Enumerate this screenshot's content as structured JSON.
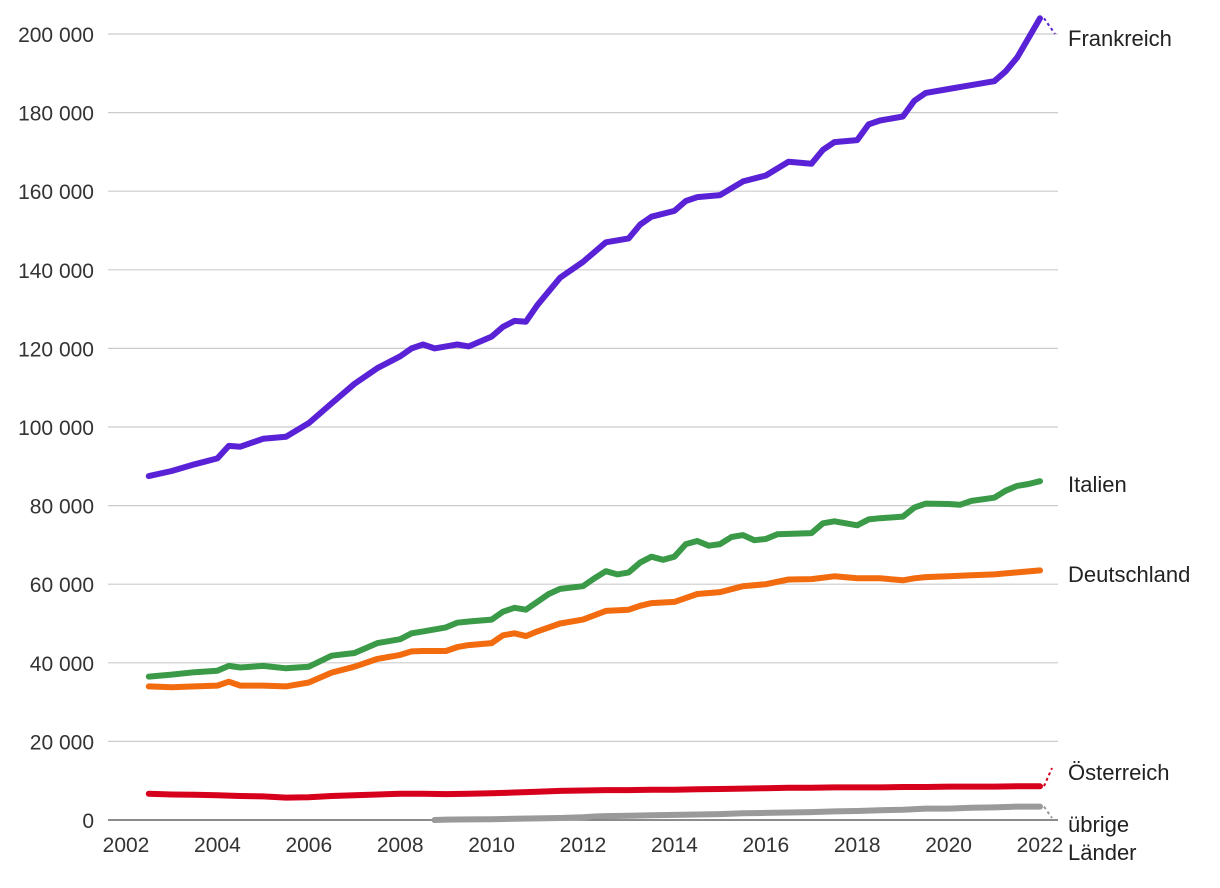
{
  "chart_data": {
    "type": "line",
    "title": "",
    "xlabel": "",
    "ylabel": "",
    "xlim": [
      2002,
      2022
    ],
    "ylim": [
      0,
      200000
    ],
    "grid": true,
    "legend": "direct labels at right end of lines",
    "x_ticks": [
      "2002",
      "2004",
      "2006",
      "2008",
      "2010",
      "2012",
      "2014",
      "2016",
      "2018",
      "2020",
      "2022"
    ],
    "y_ticks": [
      "0",
      "20 000",
      "40 000",
      "60 000",
      "80 000",
      "100 000",
      "120 000",
      "140 000",
      "160 000",
      "180 000",
      "200 000"
    ],
    "series": [
      {
        "name": "Frankreich",
        "color": "#5a22d6",
        "points": [
          [
            2002.5,
            87500
          ],
          [
            2003.0,
            88800
          ],
          [
            2003.5,
            90500
          ],
          [
            2004.0,
            92000
          ],
          [
            2004.25,
            95200
          ],
          [
            2004.5,
            95000
          ],
          [
            2005.0,
            97000
          ],
          [
            2005.5,
            97500
          ],
          [
            2006.0,
            101000
          ],
          [
            2006.5,
            106000
          ],
          [
            2007.0,
            111000
          ],
          [
            2007.5,
            115000
          ],
          [
            2008.0,
            118000
          ],
          [
            2008.25,
            120000
          ],
          [
            2008.5,
            121000
          ],
          [
            2008.75,
            120000
          ],
          [
            2009.0,
            120500
          ],
          [
            2009.25,
            121000
          ],
          [
            2009.5,
            120500
          ],
          [
            2010.0,
            123000
          ],
          [
            2010.25,
            125500
          ],
          [
            2010.5,
            127000
          ],
          [
            2010.75,
            126800
          ],
          [
            2011.0,
            131000
          ],
          [
            2011.5,
            138000
          ],
          [
            2012.0,
            142000
          ],
          [
            2012.5,
            147000
          ],
          [
            2013.0,
            148000
          ],
          [
            2013.25,
            151500
          ],
          [
            2013.5,
            153500
          ],
          [
            2014.0,
            155000
          ],
          [
            2014.25,
            157500
          ],
          [
            2014.5,
            158500
          ],
          [
            2015.0,
            159000
          ],
          [
            2015.5,
            162500
          ],
          [
            2016.0,
            164000
          ],
          [
            2016.5,
            167500
          ],
          [
            2017.0,
            167000
          ],
          [
            2017.25,
            170500
          ],
          [
            2017.5,
            172500
          ],
          [
            2018.0,
            173000
          ],
          [
            2018.25,
            177000
          ],
          [
            2018.5,
            178000
          ],
          [
            2019.0,
            179000
          ],
          [
            2019.25,
            183000
          ],
          [
            2019.5,
            185000
          ],
          [
            2020.0,
            186000
          ],
          [
            2020.5,
            187000
          ],
          [
            2021.0,
            188000
          ],
          [
            2021.25,
            190500
          ],
          [
            2021.5,
            194000
          ],
          [
            2021.75,
            199000
          ],
          [
            2022.0,
            204000
          ]
        ]
      },
      {
        "name": "Italien",
        "color": "#3a9a48",
        "points": [
          [
            2002.5,
            36500
          ],
          [
            2003.0,
            37000
          ],
          [
            2003.5,
            37600
          ],
          [
            2004.0,
            38000
          ],
          [
            2004.25,
            39200
          ],
          [
            2004.5,
            38800
          ],
          [
            2005.0,
            39200
          ],
          [
            2005.5,
            38600
          ],
          [
            2006.0,
            39000
          ],
          [
            2006.5,
            41800
          ],
          [
            2007.0,
            42500
          ],
          [
            2007.5,
            45000
          ],
          [
            2008.0,
            46000
          ],
          [
            2008.25,
            47500
          ],
          [
            2008.5,
            48000
          ],
          [
            2009.0,
            49000
          ],
          [
            2009.25,
            50200
          ],
          [
            2009.5,
            50500
          ],
          [
            2010.0,
            51000
          ],
          [
            2010.25,
            53000
          ],
          [
            2010.5,
            54000
          ],
          [
            2010.75,
            53500
          ],
          [
            2011.0,
            55500
          ],
          [
            2011.25,
            57500
          ],
          [
            2011.5,
            58800
          ],
          [
            2012.0,
            59500
          ],
          [
            2012.25,
            61500
          ],
          [
            2012.5,
            63300
          ],
          [
            2012.75,
            62500
          ],
          [
            2013.0,
            63000
          ],
          [
            2013.25,
            65500
          ],
          [
            2013.5,
            67000
          ],
          [
            2013.75,
            66200
          ],
          [
            2014.0,
            67000
          ],
          [
            2014.25,
            70200
          ],
          [
            2014.5,
            71000
          ],
          [
            2014.75,
            69800
          ],
          [
            2015.0,
            70200
          ],
          [
            2015.25,
            72000
          ],
          [
            2015.5,
            72500
          ],
          [
            2015.75,
            71200
          ],
          [
            2016.0,
            71500
          ],
          [
            2016.25,
            72700
          ],
          [
            2016.5,
            72800
          ],
          [
            2017.0,
            73000
          ],
          [
            2017.25,
            75500
          ],
          [
            2017.5,
            76000
          ],
          [
            2018.0,
            75000
          ],
          [
            2018.25,
            76500
          ],
          [
            2018.5,
            76800
          ],
          [
            2019.0,
            77200
          ],
          [
            2019.25,
            79500
          ],
          [
            2019.5,
            80500
          ],
          [
            2020.0,
            80400
          ],
          [
            2020.25,
            80200
          ],
          [
            2020.5,
            81200
          ],
          [
            2021.0,
            82000
          ],
          [
            2021.25,
            83800
          ],
          [
            2021.5,
            85000
          ],
          [
            2021.75,
            85500
          ],
          [
            2022.0,
            86200
          ]
        ]
      },
      {
        "name": "Deutschland",
        "color": "#f26b0f",
        "points": [
          [
            2002.5,
            34000
          ],
          [
            2003.0,
            33800
          ],
          [
            2003.5,
            34000
          ],
          [
            2004.0,
            34200
          ],
          [
            2004.25,
            35200
          ],
          [
            2004.5,
            34200
          ],
          [
            2005.0,
            34200
          ],
          [
            2005.5,
            34000
          ],
          [
            2006.0,
            35000
          ],
          [
            2006.5,
            37500
          ],
          [
            2007.0,
            39000
          ],
          [
            2007.5,
            41000
          ],
          [
            2008.0,
            42000
          ],
          [
            2008.25,
            42900
          ],
          [
            2008.5,
            43000
          ],
          [
            2009.0,
            43000
          ],
          [
            2009.25,
            44000
          ],
          [
            2009.5,
            44500
          ],
          [
            2010.0,
            45000
          ],
          [
            2010.25,
            47000
          ],
          [
            2010.5,
            47500
          ],
          [
            2010.75,
            46800
          ],
          [
            2011.0,
            48000
          ],
          [
            2011.5,
            50000
          ],
          [
            2012.0,
            51000
          ],
          [
            2012.5,
            53200
          ],
          [
            2013.0,
            53500
          ],
          [
            2013.25,
            54500
          ],
          [
            2013.5,
            55200
          ],
          [
            2014.0,
            55500
          ],
          [
            2014.5,
            57500
          ],
          [
            2015.0,
            58000
          ],
          [
            2015.5,
            59500
          ],
          [
            2016.0,
            60000
          ],
          [
            2016.5,
            61200
          ],
          [
            2017.0,
            61300
          ],
          [
            2017.5,
            62000
          ],
          [
            2018.0,
            61500
          ],
          [
            2018.5,
            61500
          ],
          [
            2019.0,
            61000
          ],
          [
            2019.25,
            61500
          ],
          [
            2019.5,
            61800
          ],
          [
            2020.0,
            62000
          ],
          [
            2020.5,
            62300
          ],
          [
            2021.0,
            62500
          ],
          [
            2021.5,
            63000
          ],
          [
            2022.0,
            63500
          ]
        ]
      },
      {
        "name": "Österreich",
        "color": "#d6001c",
        "points": [
          [
            2002.5,
            6700
          ],
          [
            2003.0,
            6500
          ],
          [
            2003.5,
            6400
          ],
          [
            2004.0,
            6300
          ],
          [
            2004.5,
            6100
          ],
          [
            2005.0,
            6000
          ],
          [
            2005.5,
            5700
          ],
          [
            2006.0,
            5800
          ],
          [
            2006.5,
            6100
          ],
          [
            2007.0,
            6300
          ],
          [
            2007.5,
            6500
          ],
          [
            2008.0,
            6700
          ],
          [
            2008.5,
            6700
          ],
          [
            2009.0,
            6600
          ],
          [
            2009.5,
            6700
          ],
          [
            2010.0,
            6800
          ],
          [
            2010.5,
            7000
          ],
          [
            2011.0,
            7200
          ],
          [
            2011.5,
            7400
          ],
          [
            2012.0,
            7500
          ],
          [
            2012.5,
            7600
          ],
          [
            2013.0,
            7600
          ],
          [
            2013.5,
            7700
          ],
          [
            2014.0,
            7700
          ],
          [
            2014.5,
            7800
          ],
          [
            2015.0,
            7900
          ],
          [
            2015.5,
            8000
          ],
          [
            2016.0,
            8100
          ],
          [
            2016.5,
            8200
          ],
          [
            2017.0,
            8200
          ],
          [
            2017.5,
            8300
          ],
          [
            2018.0,
            8300
          ],
          [
            2018.5,
            8300
          ],
          [
            2019.0,
            8400
          ],
          [
            2019.5,
            8400
          ],
          [
            2020.0,
            8500
          ],
          [
            2020.5,
            8500
          ],
          [
            2021.0,
            8500
          ],
          [
            2021.5,
            8600
          ],
          [
            2022.0,
            8600
          ]
        ]
      },
      {
        "name": "übrige Länder",
        "color": "#9a9a9a",
        "points": [
          [
            2008.75,
            0
          ],
          [
            2009.0,
            100
          ],
          [
            2009.5,
            150
          ],
          [
            2010.0,
            200
          ],
          [
            2010.5,
            300
          ],
          [
            2011.0,
            400
          ],
          [
            2011.5,
            500
          ],
          [
            2012.0,
            700
          ],
          [
            2012.25,
            900
          ],
          [
            2012.5,
            1000
          ],
          [
            2013.0,
            1100
          ],
          [
            2013.5,
            1200
          ],
          [
            2014.0,
            1300
          ],
          [
            2014.5,
            1400
          ],
          [
            2015.0,
            1500
          ],
          [
            2015.5,
            1700
          ],
          [
            2016.0,
            1800
          ],
          [
            2016.5,
            1900
          ],
          [
            2017.0,
            2000
          ],
          [
            2017.5,
            2200
          ],
          [
            2018.0,
            2300
          ],
          [
            2018.5,
            2500
          ],
          [
            2019.0,
            2600
          ],
          [
            2019.5,
            2900
          ],
          [
            2020.0,
            2900
          ],
          [
            2020.5,
            3100
          ],
          [
            2021.0,
            3200
          ],
          [
            2021.5,
            3400
          ],
          [
            2022.0,
            3400
          ]
        ]
      }
    ],
    "labels": [
      {
        "text": "Frankreich",
        "series": "Frankreich"
      },
      {
        "text": "Italien",
        "series": "Italien"
      },
      {
        "text": "Deutschland",
        "series": "Deutschland"
      },
      {
        "text": "Österreich",
        "series": "Österreich"
      },
      {
        "text": "übrige",
        "series": "übrige Länder"
      },
      {
        "text": "Länder",
        "series": "übrige Länder"
      }
    ]
  }
}
